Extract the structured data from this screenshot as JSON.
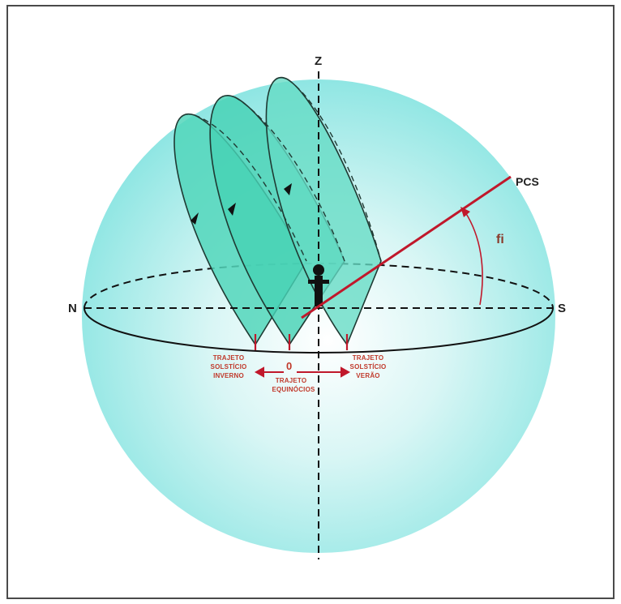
{
  "labels": {
    "zenith": "Z",
    "north": "N",
    "south": "S",
    "pcs": "PCS",
    "angle": "fi",
    "zero": "0",
    "winter": [
      "TRAJETO",
      "SOLSTÍCIO",
      "INVERNO"
    ],
    "equinox": [
      "TRAJETO",
      "EQUINÓCIOS"
    ],
    "summer": [
      "TRAJETO",
      "SOLSTÍCIO",
      "VERÃO"
    ]
  },
  "colors": {
    "sphere_center": "#ffffff",
    "sphere_edge": "#8fe6e3",
    "path_fill": "#5fd9c0",
    "path_fill_dark": "#37c9a8",
    "path_stroke": "#1f3a33",
    "axis_red": "#c0182b",
    "label_red": "#c0392b",
    "line_dark": "#111111"
  },
  "icons": {
    "observer": "person-icon",
    "sun_direction_arrows": "arrowhead-icon"
  }
}
